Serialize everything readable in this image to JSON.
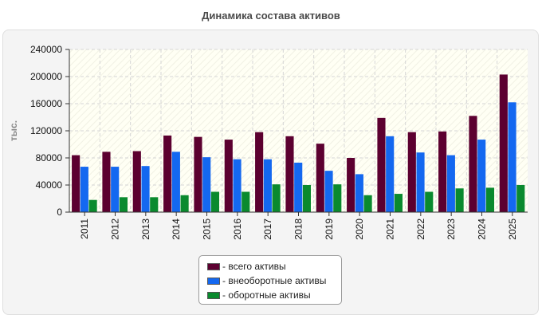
{
  "chart_data": {
    "type": "bar",
    "title": "Динамика состава активов",
    "ylabel": "тыс.",
    "xlabel": "",
    "ylim": [
      0,
      240000
    ],
    "yticks": [
      0,
      40000,
      80000,
      120000,
      160000,
      200000,
      240000
    ],
    "grid": true,
    "legend_position": "bottom",
    "categories": [
      "2011",
      "2012",
      "2013",
      "2014",
      "2015",
      "2016",
      "2017",
      "2018",
      "2019",
      "2020",
      "2021",
      "2022",
      "2023",
      "2024",
      "2025"
    ],
    "series": [
      {
        "name": "- всего активы",
        "color": "#5c0030",
        "values": [
          84000,
          89000,
          90000,
          113000,
          111000,
          107000,
          118000,
          112000,
          101000,
          80000,
          139000,
          118000,
          119000,
          142000,
          203000
        ]
      },
      {
        "name": "- внеоборотные активы",
        "color": "#1468f0",
        "values": [
          67000,
          67000,
          68000,
          89000,
          81000,
          78000,
          78000,
          73000,
          61000,
          56000,
          112000,
          88000,
          84000,
          107000,
          162000
        ]
      },
      {
        "name": "- оборотные активы",
        "color": "#0a8a2e",
        "values": [
          18000,
          22000,
          22000,
          25000,
          30000,
          30000,
          41000,
          40000,
          41000,
          25000,
          27000,
          30000,
          35000,
          36000,
          40000
        ]
      }
    ]
  }
}
